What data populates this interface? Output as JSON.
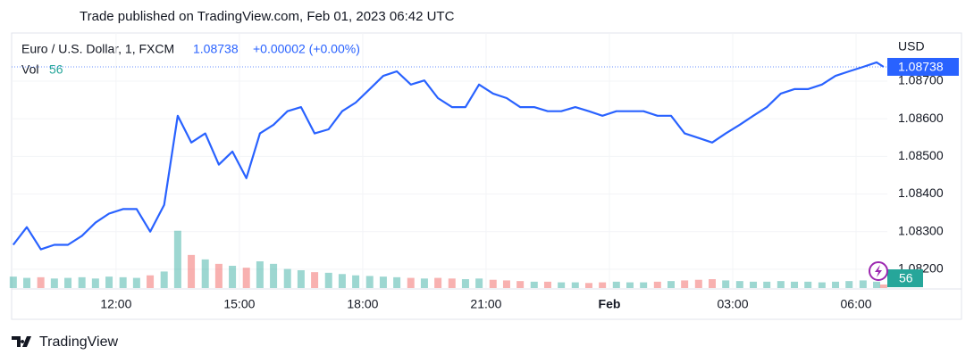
{
  "header": {
    "published": "Trade published on TradingView.com, Feb 01, 2023 06:42 UTC"
  },
  "footer": {
    "brand": "TradingView"
  },
  "chart_data": {
    "type": "line",
    "title": "Euro / U.S. Dollar, 1, FXCM",
    "change_label": "+0.00002 (+0.00%)",
    "y_axis_label": "USD",
    "x": [
      9.5,
      9.83,
      10.17,
      10.5,
      10.83,
      11.17,
      11.5,
      11.83,
      12.17,
      12.5,
      12.83,
      13.17,
      13.5,
      13.83,
      14.17,
      14.5,
      14.83,
      15.17,
      15.5,
      15.83,
      16.17,
      16.5,
      16.83,
      17.17,
      17.5,
      17.83,
      18.17,
      18.5,
      18.83,
      19.17,
      19.5,
      19.83,
      20.17,
      20.5,
      20.83,
      21.17,
      21.5,
      21.83,
      22.17,
      22.5,
      22.83,
      23.17,
      23.5,
      23.83,
      24.17,
      24.5,
      24.83,
      25.17,
      25.5,
      25.83,
      26.17,
      26.5,
      26.83,
      27.17,
      27.5,
      27.83,
      28.17,
      28.5,
      28.83,
      29.17,
      29.5,
      29.83,
      30.17,
      30.5,
      30.67
    ],
    "series": [
      {
        "name": "Euro / U.S. Dollar",
        "color": "#2962ff",
        "values": [
          1.08265,
          1.08312,
          1.08253,
          1.08265,
          1.08265,
          1.08289,
          1.08324,
          1.08348,
          1.0836,
          1.0836,
          1.083,
          1.08371,
          1.08608,
          1.08537,
          1.08561,
          1.08478,
          1.08513,
          1.08442,
          1.08561,
          1.08584,
          1.0862,
          1.08631,
          1.08561,
          1.08572,
          1.0862,
          1.08643,
          1.08679,
          1.08714,
          1.08726,
          1.08691,
          1.08702,
          1.08655,
          1.08631,
          1.08631,
          1.08691,
          1.08667,
          1.08655,
          1.08631,
          1.08631,
          1.0862,
          1.0862,
          1.08631,
          1.0862,
          1.08608,
          1.0862,
          1.0862,
          1.0862,
          1.08608,
          1.08608,
          1.08561,
          1.08549,
          1.08537,
          1.08561,
          1.08584,
          1.08608,
          1.08631,
          1.08667,
          1.08679,
          1.08679,
          1.08691,
          1.08714,
          1.08726,
          1.08738,
          1.0875,
          1.08738
        ]
      }
    ],
    "volume": {
      "name": "Vol",
      "up_color": "#26a69a",
      "down_color": "#ef5350",
      "values": [
        180,
        160,
        170,
        150,
        160,
        170,
        150,
        180,
        170,
        160,
        200,
        260,
        900,
        520,
        450,
        380,
        350,
        320,
        420,
        380,
        300,
        280,
        250,
        240,
        220,
        200,
        190,
        180,
        170,
        160,
        150,
        160,
        150,
        140,
        150,
        130,
        120,
        110,
        100,
        100,
        90,
        90,
        80,
        90,
        100,
        90,
        90,
        100,
        110,
        120,
        130,
        140,
        120,
        110,
        100,
        100,
        110,
        100,
        100,
        90,
        100,
        110,
        120,
        100,
        56
      ]
    },
    "y2lim": [
      0,
      1400
    ],
    "xlim": [
      9.46,
      30.76
    ],
    "xticks": [
      {
        "value": 12,
        "label": "12:00"
      },
      {
        "value": 15,
        "label": "15:00"
      },
      {
        "value": 18,
        "label": "18:00"
      },
      {
        "value": 21,
        "label": "21:00"
      },
      {
        "value": 24,
        "label": "Feb"
      },
      {
        "value": 27,
        "label": "03:00"
      },
      {
        "value": 30,
        "label": "06:00"
      }
    ],
    "ylim": [
      1.0815,
      1.08828
    ],
    "yticks": [
      {
        "value": 1.082,
        "label": "1.08200"
      },
      {
        "value": 1.083,
        "label": "1.08300"
      },
      {
        "value": 1.084,
        "label": "1.08400"
      },
      {
        "value": 1.085,
        "label": "1.08500"
      },
      {
        "value": 1.086,
        "label": "1.08600"
      },
      {
        "value": 1.087,
        "label": "1.08700"
      }
    ],
    "grid": true
  }
}
